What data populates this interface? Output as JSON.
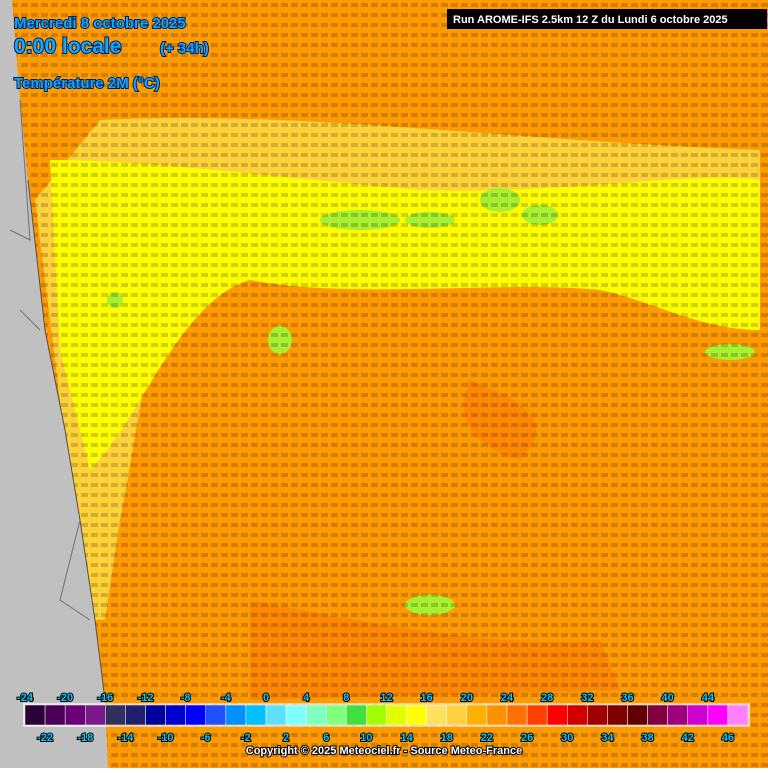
{
  "header": {
    "date": "Mercredi 8 octobre 2025",
    "time": "0:00 locale",
    "offset": "(+ 34h)",
    "parameter": "Température 2M (°C)",
    "run": "Run AROME-IFS 2.5km 12 Z du Lundi 6 octobre 2025"
  },
  "legend": {
    "lim": [
      -24,
      48
    ],
    "top_ticks": [
      -24,
      -20,
      -16,
      -12,
      -8,
      -4,
      0,
      4,
      8,
      12,
      16,
      20,
      24,
      28,
      32,
      36,
      40,
      44
    ],
    "bottom_ticks": [
      -22,
      -18,
      -14,
      -10,
      -6,
      -2,
      2,
      6,
      10,
      14,
      18,
      22,
      26,
      30,
      34,
      38,
      42,
      46
    ],
    "colors": [
      "#2b0038",
      "#4a0058",
      "#690078",
      "#7a1a8a",
      "#303060",
      "#20206f",
      "#0000a0",
      "#0000d0",
      "#0000ff",
      "#2050ff",
      "#0090ff",
      "#00c0ff",
      "#60e0ff",
      "#80ffff",
      "#80ffc0",
      "#80ff80",
      "#40e040",
      "#a0ff00",
      "#e0ff00",
      "#ffff00",
      "#ffe060",
      "#ffd040",
      "#ffb000",
      "#ff9000",
      "#ff7000",
      "#ff4000",
      "#ff0000",
      "#d00000",
      "#a00000",
      "#800000",
      "#600000",
      "#800040",
      "#a00080",
      "#d000d0",
      "#ff00ff",
      "#ff80ff"
    ]
  },
  "footer": {
    "copyright": "Copyright © 2025 Meteociel.fr - Source Meteo-France"
  }
}
